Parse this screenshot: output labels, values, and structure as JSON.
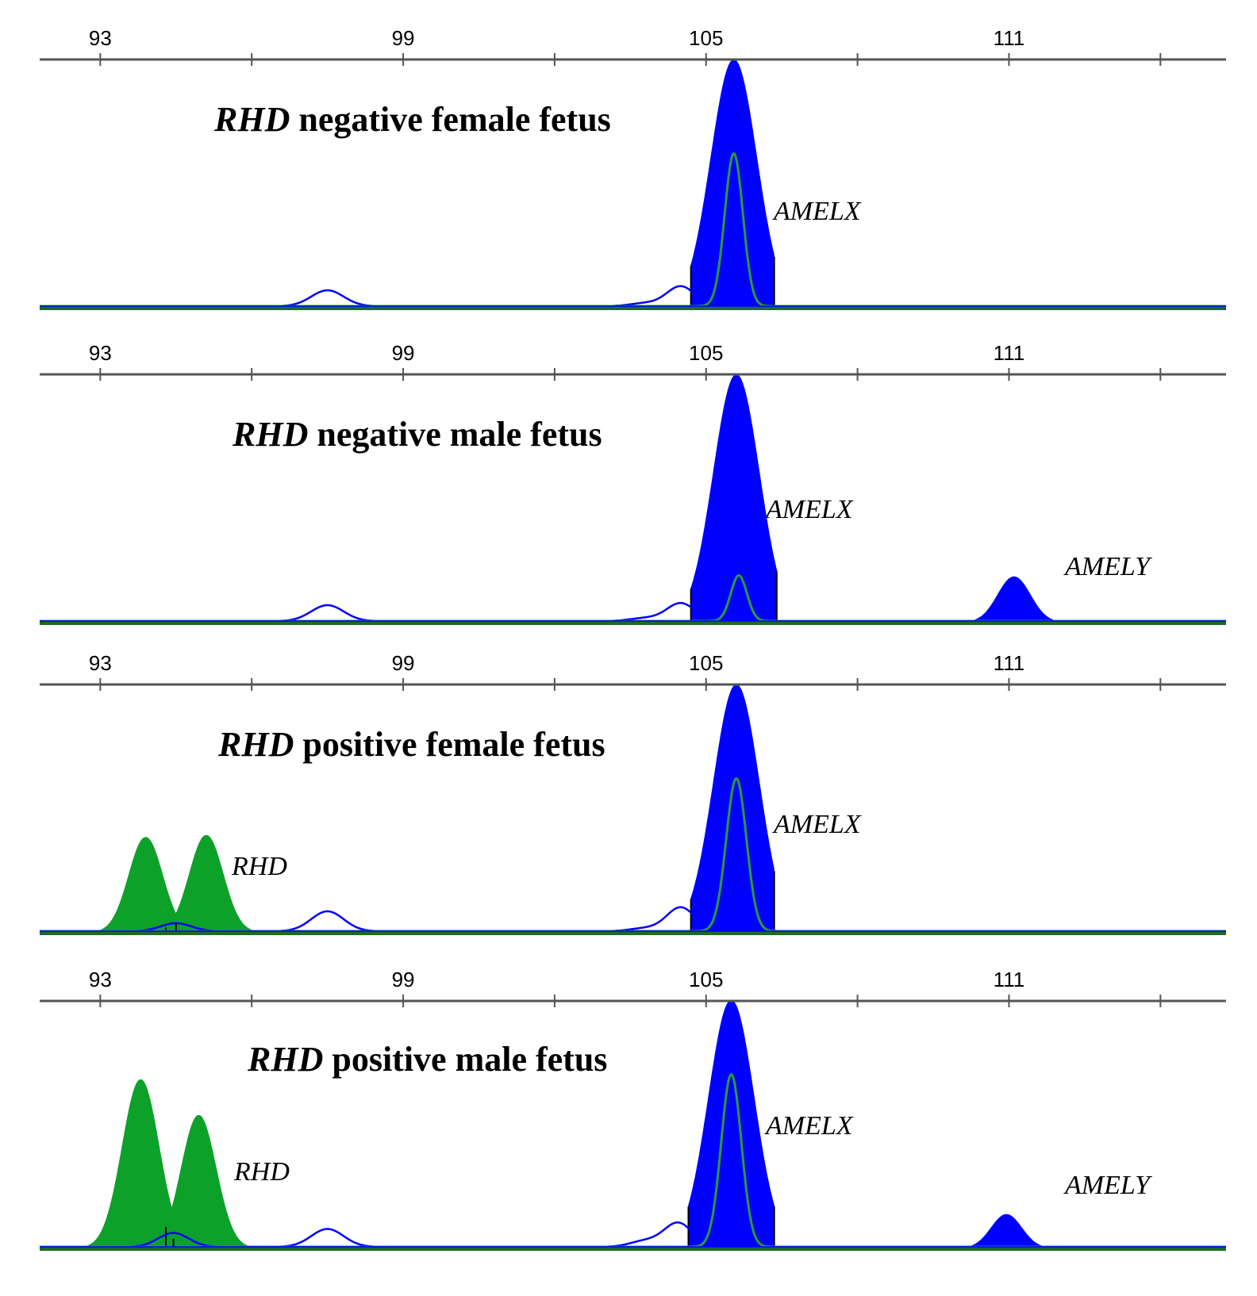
{
  "colors": {
    "blue_channel": "#0000ff",
    "green_channel": "#0da12a",
    "green_trace": "#2a9a3a",
    "axis": "#555555"
  },
  "x_axis": {
    "ticks": [
      93,
      99,
      105,
      111
    ],
    "minor_ticks": [
      96,
      102,
      108,
      114
    ],
    "range": [
      91.8,
      115.3
    ]
  },
  "chart_data": [
    {
      "type": "line",
      "title_gene": "RHD",
      "title_rest": " negative female fetus",
      "x_ticks": [
        93,
        99,
        105,
        111
      ],
      "ylim": [
        0,
        1
      ],
      "filled_peaks": [
        {
          "channel": "blue",
          "center": 105.55,
          "width": 0.45,
          "height": 1.25,
          "from": 104.7,
          "to": 106.35,
          "label": "AMELX"
        }
      ],
      "outline_peaks": [
        {
          "channel": "blue",
          "center": 97.5,
          "width": 0.32,
          "height": 0.08
        },
        {
          "channel": "blue",
          "center": 103.8,
          "width": 0.3,
          "height": 0.015
        },
        {
          "channel": "blue",
          "center": 104.5,
          "width": 0.28,
          "height": 0.1
        },
        {
          "channel": "green",
          "center": 105.55,
          "width": 0.18,
          "height": 0.77
        }
      ],
      "peak_labels": [
        {
          "text": "AMELX"
        }
      ]
    },
    {
      "type": "line",
      "title_gene": "RHD",
      "title_rest": " negative male fetus",
      "x_ticks": [
        93,
        99,
        105,
        111
      ],
      "ylim": [
        0,
        1
      ],
      "filled_peaks": [
        {
          "channel": "blue",
          "center": 105.6,
          "width": 0.45,
          "height": 1.25,
          "from": 104.7,
          "to": 106.4,
          "label": "AMELX"
        },
        {
          "channel": "blue",
          "center": 111.1,
          "width": 0.32,
          "height": 0.23,
          "from": 110.0,
          "to": 112.3,
          "label": "AMELY"
        }
      ],
      "outline_peaks": [
        {
          "channel": "blue",
          "center": 97.5,
          "width": 0.32,
          "height": 0.08
        },
        {
          "channel": "blue",
          "center": 103.8,
          "width": 0.3,
          "height": 0.015
        },
        {
          "channel": "blue",
          "center": 104.5,
          "width": 0.28,
          "height": 0.09
        },
        {
          "channel": "green",
          "center": 105.65,
          "width": 0.16,
          "height": 0.23
        }
      ],
      "peak_labels": [
        {
          "text": "AMELX"
        },
        {
          "text": "AMELY"
        }
      ]
    },
    {
      "type": "line",
      "title_gene": "RHD",
      "title_rest": " positive female fetus",
      "x_ticks": [
        93,
        99,
        105,
        111
      ],
      "ylim": [
        0,
        1
      ],
      "filled_peaks": [
        {
          "channel": "green",
          "center": 93.9,
          "width": 0.33,
          "height": 0.48,
          "from": 92.0,
          "to": 95.7,
          "label": "RHD"
        },
        {
          "channel": "green",
          "center": 95.1,
          "width": 0.33,
          "height": 0.49,
          "from": 94.3,
          "to": 97.0,
          "label": "RHD"
        },
        {
          "channel": "blue",
          "center": 105.6,
          "width": 0.45,
          "height": 1.25,
          "from": 104.7,
          "to": 106.35,
          "label": "AMELX"
        }
      ],
      "outline_peaks": [
        {
          "channel": "blue",
          "center": 94.5,
          "width": 0.3,
          "height": 0.04
        },
        {
          "channel": "blue",
          "center": 97.5,
          "width": 0.32,
          "height": 0.1
        },
        {
          "channel": "blue",
          "center": 103.8,
          "width": 0.3,
          "height": 0.015
        },
        {
          "channel": "blue",
          "center": 104.5,
          "width": 0.28,
          "height": 0.12
        },
        {
          "channel": "green",
          "center": 105.6,
          "width": 0.2,
          "height": 0.77
        }
      ],
      "peak_labels": [
        {
          "text": "RHD"
        },
        {
          "text": "AMELX"
        }
      ]
    },
    {
      "type": "line",
      "title_gene": "RHD",
      "title_rest": " positive male fetus",
      "x_ticks": [
        93,
        99,
        105,
        111
      ],
      "ylim": [
        0,
        1
      ],
      "filled_peaks": [
        {
          "channel": "green",
          "center": 93.8,
          "width": 0.36,
          "height": 0.85,
          "from": 92.0,
          "to": 95.5,
          "label": "RHD"
        },
        {
          "channel": "green",
          "center": 94.95,
          "width": 0.34,
          "height": 0.67,
          "from": 94.3,
          "to": 96.9,
          "label": "RHD"
        },
        {
          "channel": "blue",
          "center": 105.5,
          "width": 0.45,
          "height": 1.25,
          "from": 104.65,
          "to": 106.35,
          "label": "AMELX"
        },
        {
          "channel": "blue",
          "center": 110.95,
          "width": 0.3,
          "height": 0.17,
          "from": 110.0,
          "to": 112.0,
          "label": "AMELY"
        }
      ],
      "outline_peaks": [
        {
          "channel": "blue",
          "center": 94.45,
          "width": 0.3,
          "height": 0.07
        },
        {
          "channel": "blue",
          "center": 97.5,
          "width": 0.32,
          "height": 0.09
        },
        {
          "channel": "blue",
          "center": 103.8,
          "width": 0.3,
          "height": 0.03
        },
        {
          "channel": "blue",
          "center": 104.45,
          "width": 0.28,
          "height": 0.12
        },
        {
          "channel": "green",
          "center": 105.5,
          "width": 0.2,
          "height": 0.87
        }
      ],
      "peak_labels": [
        {
          "text": "RHD"
        },
        {
          "text": "AMELX"
        },
        {
          "text": "AMELY"
        }
      ]
    }
  ]
}
